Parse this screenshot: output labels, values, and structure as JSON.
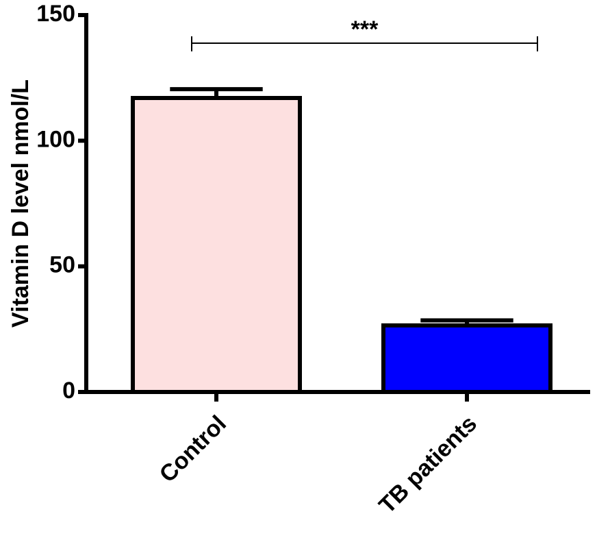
{
  "chart_data": {
    "type": "bar",
    "ylabel": "Vitamin D level nmol/L",
    "categories": [
      "Control",
      "TB patients"
    ],
    "values": [
      117,
      26.5
    ],
    "errors": [
      3.5,
      2
    ],
    "colors": [
      "#fde0e0",
      "#0000ff"
    ],
    "ylim": [
      0,
      150
    ],
    "yticks": [
      0,
      50,
      100,
      150
    ],
    "annotations": [
      {
        "text": "***"
      }
    ]
  }
}
